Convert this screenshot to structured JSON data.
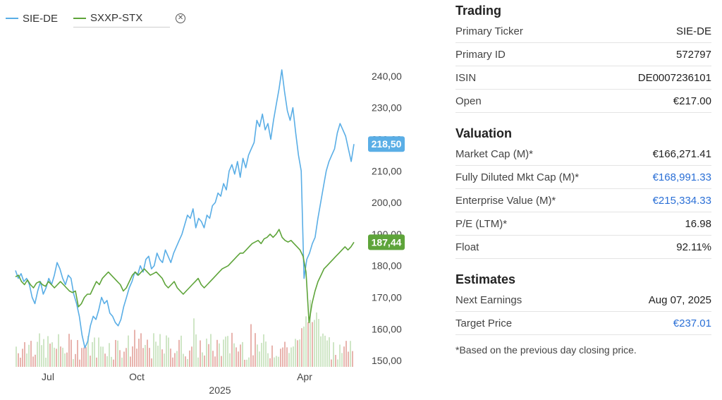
{
  "legend": {
    "primary": {
      "label": "SIE-DE",
      "color": "#5aaee6"
    },
    "compare": {
      "label": "SXXP-STX",
      "color": "#5ea43a"
    }
  },
  "chart_data": {
    "type": "line",
    "x_ticks": [
      "Jul",
      "Oct",
      "Apr"
    ],
    "year_label": "2025",
    "y_ticks": [
      "240,00",
      "230,00",
      "220,00",
      "210,00",
      "200,00",
      "190,00",
      "180,00",
      "170,00",
      "160,00",
      "150,00"
    ],
    "ylim": [
      148,
      244
    ],
    "series": [
      {
        "name": "SIE-DE",
        "color": "#5aaee6",
        "last_tag": "218,50",
        "values": [
          178.5,
          176,
          177.5,
          175,
          176,
          174,
          170,
          168,
          172,
          175,
          171,
          173,
          176,
          174,
          177,
          181,
          179,
          176,
          174,
          177,
          176,
          171,
          168,
          164,
          158,
          154,
          156,
          161,
          164,
          163,
          166,
          170,
          168,
          169,
          165,
          164,
          162,
          161,
          163,
          167,
          170,
          173,
          175,
          178,
          177,
          180,
          178,
          182,
          183,
          179,
          180,
          184,
          182,
          181,
          185,
          183,
          181,
          184,
          186,
          188,
          190,
          193,
          196,
          195,
          198,
          192,
          195,
          194,
          192,
          196,
          195,
          199,
          200,
          203,
          202,
          206,
          204,
          210,
          212,
          209,
          213,
          208,
          214,
          211,
          215,
          217,
          219,
          226,
          224,
          228,
          223,
          225,
          220,
          226,
          231,
          236,
          242,
          235,
          229,
          226,
          230,
          222,
          215,
          210,
          176,
          182,
          184,
          187,
          189,
          195,
          200,
          205,
          210,
          213,
          215,
          217,
          222,
          225,
          223,
          221,
          217,
          213,
          218.5
        ]
      },
      {
        "name": "SXXP-STX",
        "color": "#5ea43a",
        "last_tag": "187,44",
        "values": [
          176.5,
          177,
          175,
          174,
          175.5,
          174,
          173,
          174.5,
          175,
          174,
          173.5,
          175,
          174,
          173,
          174,
          175,
          174,
          173,
          172,
          171.5,
          172,
          167,
          168,
          170,
          171,
          171,
          173,
          175,
          174,
          176,
          177,
          178,
          177,
          176,
          175,
          174,
          172,
          173,
          175,
          177,
          178,
          177,
          178,
          179,
          178,
          177,
          177.5,
          178,
          177,
          176,
          174,
          173,
          174,
          175,
          173,
          172,
          171,
          172,
          173,
          174,
          175,
          176,
          174,
          173,
          174,
          175,
          176,
          177,
          178,
          179,
          179.5,
          180,
          181,
          182,
          183,
          184,
          184,
          185,
          186,
          187,
          187.5,
          188,
          187,
          188.5,
          189,
          190,
          189,
          190,
          191.5,
          189,
          188,
          187.5,
          188,
          187,
          186,
          185,
          183,
          178,
          162,
          168,
          172,
          175,
          177,
          179,
          180,
          181,
          182,
          183,
          184,
          185,
          186,
          185,
          186,
          187.44
        ]
      }
    ]
  },
  "panel": {
    "sections": [
      {
        "title": "Trading",
        "rows": [
          {
            "label": "Primary Ticker",
            "value": "SIE-DE",
            "link": false
          },
          {
            "label": "Primary ID",
            "value": "572797",
            "link": false
          },
          {
            "label": "ISIN",
            "value": "DE0007236101",
            "link": false
          },
          {
            "label": "Open",
            "value": "€217.00",
            "link": false
          }
        ]
      },
      {
        "title": "Valuation",
        "rows": [
          {
            "label": "Market Cap (M)*",
            "value": "€166,271.41",
            "link": false
          },
          {
            "label": "Fully Diluted Mkt Cap (M)*",
            "value": "€168,991.33",
            "link": true
          },
          {
            "label": "Enterprise Value (M)*",
            "value": "€215,334.33",
            "link": true
          },
          {
            "label": "P/E (LTM)*",
            "value": "16.98",
            "link": false
          },
          {
            "label": "Float",
            "value": "92.11%",
            "link": false
          }
        ]
      },
      {
        "title": "Estimates",
        "rows": [
          {
            "label": "Next Earnings",
            "value": "Aug 07, 2025",
            "link": false
          },
          {
            "label": "Target Price",
            "value": "€237.01",
            "link": true
          }
        ]
      }
    ],
    "footnote": "*Based on the previous day closing price."
  }
}
